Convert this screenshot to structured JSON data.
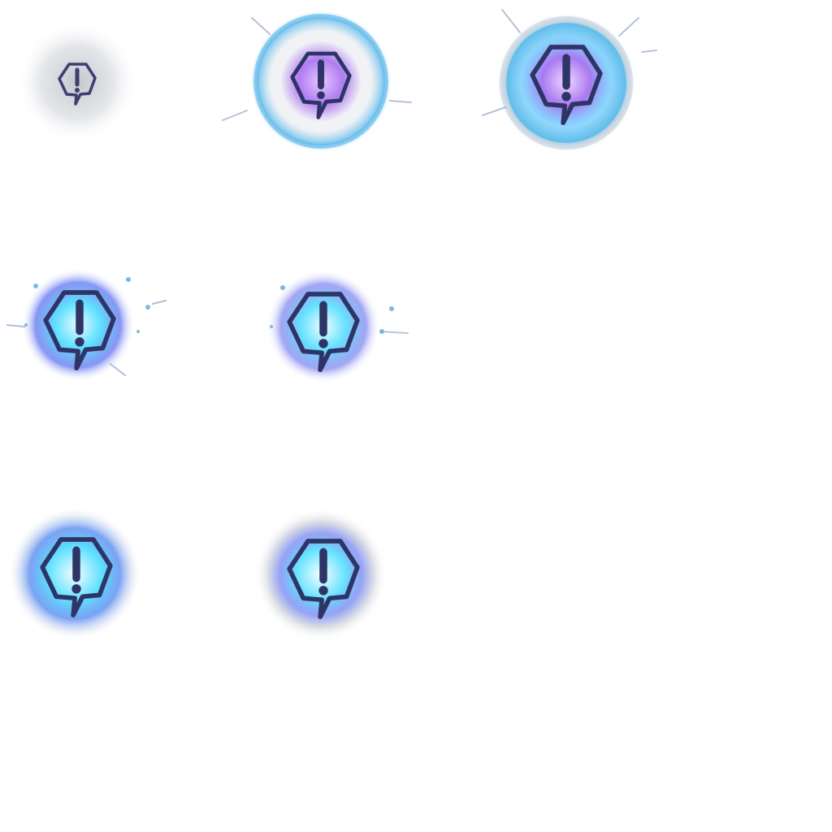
{
  "sprite_sheet": {
    "grid": {
      "columns": 3,
      "rows": 3
    },
    "frames": [
      {
        "id": "alert-frame-1",
        "stage": "spawn",
        "icon": "alert-hexagon-icon",
        "glyph": "!",
        "glow": "gray",
        "core": "none",
        "ring": false,
        "sparks": false
      },
      {
        "id": "alert-frame-2",
        "stage": "charge",
        "icon": "alert-hexagon-icon",
        "glyph": "!",
        "glow": "bubble",
        "core": "purple",
        "ring": true,
        "sparks": true
      },
      {
        "id": "alert-frame-3",
        "stage": "charge",
        "icon": "alert-hexagon-icon",
        "glyph": "!",
        "glow": "bubble",
        "core": "purple",
        "ring": true,
        "sparks": true
      },
      {
        "id": "alert-frame-4",
        "stage": "burst",
        "icon": "alert-hexagon-icon",
        "glyph": "!",
        "glow": "cyan",
        "core": "cyan",
        "ring": false,
        "sparks": true
      },
      {
        "id": "alert-frame-5",
        "stage": "burst",
        "icon": "alert-hexagon-icon",
        "glyph": "!",
        "glow": "cyan",
        "core": "cyan",
        "ring": false,
        "sparks": true
      },
      {
        "id": "alert-frame-6",
        "stage": "settle",
        "icon": "alert-hexagon-icon",
        "glyph": "!",
        "glow": "soft",
        "core": "cyan",
        "ring": false,
        "sparks": false
      },
      {
        "id": "alert-frame-7",
        "stage": "settle",
        "icon": "alert-hexagon-icon",
        "glyph": "!",
        "glow": "soft",
        "core": "cyan",
        "ring": false,
        "sparks": false
      }
    ],
    "colors": {
      "background": "#ffffff",
      "outline": "#2e3566",
      "purple_core": "#b07cf0",
      "cyan_core": "#4fd6ff",
      "ring": "#5fb8e8",
      "haze": "#c9ccd6"
    }
  }
}
